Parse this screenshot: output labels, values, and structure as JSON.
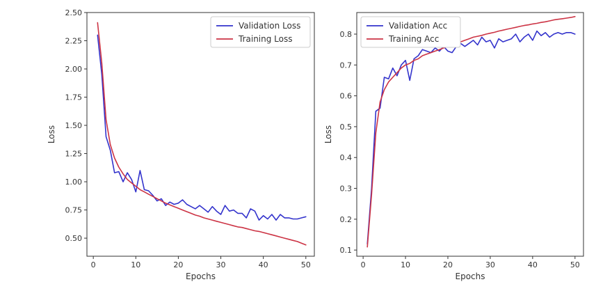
{
  "chart_data": [
    {
      "type": "line",
      "xlabel": "Epochs",
      "ylabel": "Loss",
      "xlim": [
        -1.5,
        52
      ],
      "ylim": [
        0.34,
        2.5
      ],
      "xticks": [
        0,
        10,
        20,
        30,
        40,
        50
      ],
      "yticks": [
        0.5,
        0.75,
        1.0,
        1.25,
        1.5,
        1.75,
        2.0,
        2.25,
        2.5
      ],
      "ytick_labels": [
        "0.50",
        "0.75",
        "1.00",
        "1.25",
        "1.50",
        "1.75",
        "2.00",
        "2.25",
        "2.50"
      ],
      "grid": false,
      "legend_position": "upper right",
      "series": [
        {
          "name": "Validation Loss",
          "color": "#3333cc",
          "x": [
            1,
            2,
            3,
            4,
            5,
            6,
            7,
            8,
            9,
            10,
            11,
            12,
            13,
            14,
            15,
            16,
            17,
            18,
            19,
            20,
            21,
            22,
            23,
            24,
            25,
            26,
            27,
            28,
            29,
            30,
            31,
            32,
            33,
            34,
            35,
            36,
            37,
            38,
            39,
            40,
            41,
            42,
            43,
            44,
            45,
            46,
            47,
            48,
            49,
            50
          ],
          "y": [
            2.3,
            1.95,
            1.4,
            1.28,
            1.08,
            1.09,
            1.0,
            1.08,
            1.02,
            0.91,
            1.1,
            0.93,
            0.92,
            0.88,
            0.83,
            0.85,
            0.79,
            0.82,
            0.8,
            0.81,
            0.84,
            0.8,
            0.78,
            0.76,
            0.79,
            0.76,
            0.73,
            0.78,
            0.74,
            0.71,
            0.79,
            0.74,
            0.75,
            0.72,
            0.72,
            0.68,
            0.76,
            0.74,
            0.66,
            0.7,
            0.67,
            0.71,
            0.66,
            0.71,
            0.68,
            0.68,
            0.67,
            0.67,
            0.68,
            0.69
          ]
        },
        {
          "name": "Training Loss",
          "color": "#cc3344",
          "x": [
            1,
            2,
            3,
            4,
            5,
            6,
            7,
            8,
            9,
            10,
            11,
            12,
            13,
            14,
            15,
            16,
            17,
            18,
            19,
            20,
            21,
            22,
            23,
            24,
            25,
            26,
            27,
            28,
            29,
            30,
            31,
            32,
            33,
            34,
            35,
            36,
            37,
            38,
            39,
            40,
            41,
            42,
            43,
            44,
            45,
            46,
            47,
            48,
            49,
            50
          ],
          "y": [
            2.41,
            2.05,
            1.55,
            1.33,
            1.21,
            1.13,
            1.07,
            1.02,
            0.99,
            0.96,
            0.93,
            0.91,
            0.89,
            0.87,
            0.85,
            0.83,
            0.81,
            0.795,
            0.78,
            0.765,
            0.75,
            0.735,
            0.72,
            0.705,
            0.695,
            0.68,
            0.67,
            0.66,
            0.65,
            0.64,
            0.63,
            0.62,
            0.61,
            0.6,
            0.595,
            0.585,
            0.575,
            0.565,
            0.56,
            0.55,
            0.54,
            0.53,
            0.52,
            0.51,
            0.5,
            0.49,
            0.48,
            0.47,
            0.455,
            0.44
          ]
        }
      ]
    },
    {
      "type": "line",
      "xlabel": "Epochs",
      "ylabel": "Loss",
      "xlim": [
        -1.5,
        52
      ],
      "ylim": [
        0.08,
        0.87
      ],
      "xticks": [
        0,
        10,
        20,
        30,
        40,
        50
      ],
      "yticks": [
        0.1,
        0.2,
        0.3,
        0.4,
        0.5,
        0.6,
        0.7,
        0.8
      ],
      "ytick_labels": [
        "0.1",
        "0.2",
        "0.3",
        "0.4",
        "0.5",
        "0.6",
        "0.7",
        "0.8"
      ],
      "grid": false,
      "legend_position": "upper left",
      "series": [
        {
          "name": "Validation Acc",
          "color": "#3333cc",
          "x": [
            1,
            2,
            3,
            4,
            5,
            6,
            7,
            8,
            9,
            10,
            11,
            12,
            13,
            14,
            15,
            16,
            17,
            18,
            19,
            20,
            21,
            22,
            23,
            24,
            25,
            26,
            27,
            28,
            29,
            30,
            31,
            32,
            33,
            34,
            35,
            36,
            37,
            38,
            39,
            40,
            41,
            42,
            43,
            44,
            45,
            46,
            47,
            48,
            49,
            50
          ],
          "y": [
            0.12,
            0.3,
            0.55,
            0.56,
            0.66,
            0.655,
            0.69,
            0.665,
            0.7,
            0.715,
            0.65,
            0.72,
            0.73,
            0.75,
            0.745,
            0.74,
            0.755,
            0.745,
            0.76,
            0.745,
            0.74,
            0.76,
            0.77,
            0.76,
            0.77,
            0.78,
            0.765,
            0.79,
            0.775,
            0.78,
            0.755,
            0.785,
            0.775,
            0.78,
            0.785,
            0.8,
            0.775,
            0.79,
            0.8,
            0.78,
            0.81,
            0.795,
            0.805,
            0.79,
            0.8,
            0.805,
            0.8,
            0.805,
            0.805,
            0.8
          ]
        },
        {
          "name": "Training Acc",
          "color": "#cc3344",
          "x": [
            1,
            2,
            3,
            4,
            5,
            6,
            7,
            8,
            9,
            10,
            11,
            12,
            13,
            14,
            15,
            16,
            17,
            18,
            19,
            20,
            21,
            22,
            23,
            24,
            25,
            26,
            27,
            28,
            29,
            30,
            31,
            32,
            33,
            34,
            35,
            36,
            37,
            38,
            39,
            40,
            41,
            42,
            43,
            44,
            45,
            46,
            47,
            48,
            49,
            50
          ],
          "y": [
            0.11,
            0.28,
            0.48,
            0.58,
            0.62,
            0.645,
            0.66,
            0.675,
            0.69,
            0.7,
            0.705,
            0.715,
            0.72,
            0.73,
            0.735,
            0.74,
            0.745,
            0.75,
            0.755,
            0.76,
            0.765,
            0.77,
            0.775,
            0.78,
            0.785,
            0.79,
            0.793,
            0.796,
            0.8,
            0.803,
            0.806,
            0.81,
            0.813,
            0.816,
            0.819,
            0.822,
            0.825,
            0.828,
            0.83,
            0.833,
            0.835,
            0.838,
            0.84,
            0.843,
            0.846,
            0.848,
            0.85,
            0.852,
            0.854,
            0.857
          ]
        }
      ]
    }
  ]
}
